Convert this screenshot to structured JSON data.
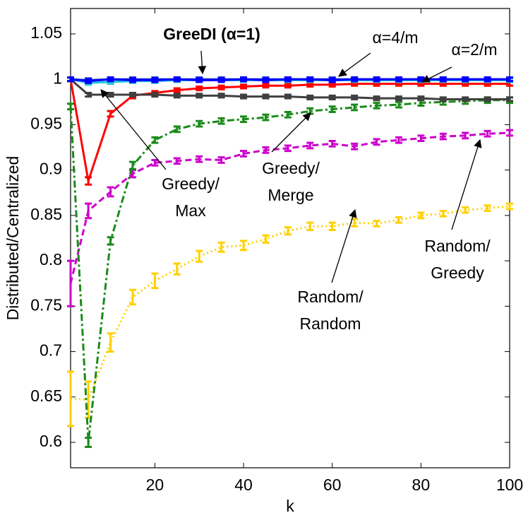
{
  "chart_data": {
    "type": "line",
    "xlabel": "k",
    "ylabel": "Distributed/Centralized",
    "x": [
      1,
      5,
      10,
      15,
      20,
      25,
      30,
      35,
      40,
      45,
      50,
      55,
      60,
      65,
      70,
      75,
      80,
      85,
      90,
      95,
      100
    ],
    "xlim": [
      1,
      100
    ],
    "xticks": [
      20,
      40,
      60,
      80,
      100
    ],
    "ylim": [
      0.572,
      1.078
    ],
    "yticks": [
      0.6,
      0.65,
      0.7,
      0.75,
      0.8,
      0.85,
      0.9,
      0.95,
      1,
      1.05
    ],
    "series": [
      {
        "color": "#ffd000",
        "style": "dotted",
        "values": [
          0.648,
          0.647,
          0.71,
          0.76,
          0.778,
          0.791,
          0.805,
          0.815,
          0.817,
          0.824,
          0.833,
          0.838,
          0.838,
          0.842,
          0.841,
          0.845,
          0.85,
          0.852,
          0.856,
          0.858,
          0.86
        ],
        "errors": [
          0.03,
          0.02,
          0.01,
          0.008,
          0.008,
          0.006,
          0.006,
          0.005,
          0.005,
          0.004,
          0.004,
          0.004,
          0.004,
          0.004,
          0.003,
          0.003,
          0.003,
          0.003,
          0.003,
          0.003,
          0.003
        ]
      },
      {
        "color": "#cc00cc",
        "style": "dashed",
        "values": [
          0.775,
          0.855,
          0.876,
          0.896,
          0.908,
          0.91,
          0.912,
          0.911,
          0.918,
          0.922,
          0.924,
          0.927,
          0.929,
          0.926,
          0.931,
          0.933,
          0.935,
          0.937,
          0.938,
          0.94,
          0.941
        ],
        "errors": [
          0.025,
          0.008,
          0.005,
          0.004,
          0.003,
          0.003,
          0.003,
          0.003,
          0.003,
          0.003,
          0.003,
          0.003,
          0.003,
          0.003,
          0.003,
          0.003,
          0.003,
          0.003,
          0.003,
          0.003,
          0.003
        ]
      },
      {
        "color": "#1a8a1a",
        "style": "dashdot",
        "values": [
          0.97,
          0.6,
          0.822,
          0.905,
          0.933,
          0.945,
          0.951,
          0.954,
          0.956,
          0.958,
          0.961,
          0.965,
          0.967,
          0.969,
          0.971,
          0.972,
          0.974,
          0.975,
          0.976,
          0.977,
          0.977
        ],
        "errors": [
          0.003,
          0.005,
          0.004,
          0.004,
          0.003,
          0.003,
          0.003,
          0.003,
          0.003,
          0.003,
          0.003,
          0.003,
          0.003,
          0.003,
          0.003,
          0.003,
          0.003,
          0.003,
          0.003,
          0.003,
          0.003
        ]
      },
      {
        "color": "#ff0000",
        "style": "solid",
        "values": [
          1,
          0.888,
          0.962,
          0.982,
          0.985,
          0.988,
          0.99,
          0.991,
          0.992,
          0.993,
          0.993,
          0.994,
          0.994,
          0.995,
          0.995,
          0.995,
          0.995,
          0.995,
          0.995,
          0.995,
          0.995
        ],
        "errors": [
          0.002,
          0.004,
          0.003,
          0.003,
          0.002,
          0.002,
          0.002,
          0.002,
          0.002,
          0.002,
          0.002,
          0.002,
          0.002,
          0.002,
          0.002,
          0.002,
          0.002,
          0.002,
          0.002,
          0.002,
          0.002
        ]
      },
      {
        "color": "#404040",
        "style": "solid",
        "values": [
          1,
          0.983,
          0.983,
          0.983,
          0.983,
          0.982,
          0.982,
          0.982,
          0.981,
          0.981,
          0.981,
          0.98,
          0.98,
          0.98,
          0.979,
          0.979,
          0.979,
          0.978,
          0.978,
          0.978,
          0.978
        ],
        "errors": [
          0.002,
          0.002,
          0.002,
          0.002,
          0.002,
          0.002,
          0.002,
          0.002,
          0.002,
          0.002,
          0.002,
          0.002,
          0.002,
          0.002,
          0.002,
          0.002,
          0.002,
          0.002,
          0.002,
          0.002,
          0.002
        ]
      },
      {
        "color": "#22c8d8",
        "style": "solid",
        "values": [
          1,
          0.996,
          0.997,
          0.998,
          0.998,
          0.999,
          0.999,
          0.999,
          0.999,
          0.999,
          0.999,
          0.999,
          0.999,
          0.999,
          0.999,
          0.999,
          0.999,
          0.999,
          0.999,
          0.999,
          0.999
        ],
        "errors": [
          0.002,
          0.002,
          0.002,
          0.002,
          0.002,
          0.002,
          0.002,
          0.002,
          0.002,
          0.002,
          0.002,
          0.002,
          0.002,
          0.002,
          0.002,
          0.002,
          0.002,
          0.002,
          0.002,
          0.002,
          0.002
        ]
      },
      {
        "color": "#1030d0",
        "style": "solid",
        "values": [
          1,
          0.999,
          1,
          1,
          1,
          1,
          1,
          1,
          1,
          1,
          1,
          1,
          1,
          1,
          1,
          1,
          1,
          1,
          1,
          1,
          1
        ],
        "errors": [
          0.002,
          0.002,
          0.002,
          0.002,
          0.002,
          0.002,
          0.002,
          0.002,
          0.002,
          0.002,
          0.002,
          0.002,
          0.002,
          0.002,
          0.002,
          0.002,
          0.002,
          0.002,
          0.002,
          0.002,
          0.002
        ]
      },
      {
        "color": "#0000ff",
        "style": "solid",
        "values": [
          1,
          0.998,
          1,
          0.999,
          0.999,
          1,
          0.999,
          0.999,
          1,
          0.999,
          1,
          1,
          0.999,
          1,
          1,
          1,
          1,
          1,
          1,
          1,
          1
        ],
        "errors": [
          0.002,
          0.002,
          0.002,
          0.002,
          0.002,
          0.002,
          0.002,
          0.002,
          0.002,
          0.002,
          0.002,
          0.002,
          0.002,
          0.002,
          0.002,
          0.002,
          0.002,
          0.002,
          0.002,
          0.002,
          0.002
        ]
      }
    ],
    "annotations": [
      {
        "lines": [
          "GreeDI (α=1)"
        ],
        "bold": true
      },
      {
        "lines": [
          "α=4/m"
        ]
      },
      {
        "lines": [
          "α=2/m"
        ]
      },
      {
        "lines": [
          "Greedy/",
          "Max"
        ]
      },
      {
        "lines": [
          "Greedy/",
          "Merge"
        ]
      },
      {
        "lines": [
          "Random/",
          "Greedy"
        ]
      },
      {
        "lines": [
          "Random/",
          "Random"
        ]
      }
    ]
  }
}
